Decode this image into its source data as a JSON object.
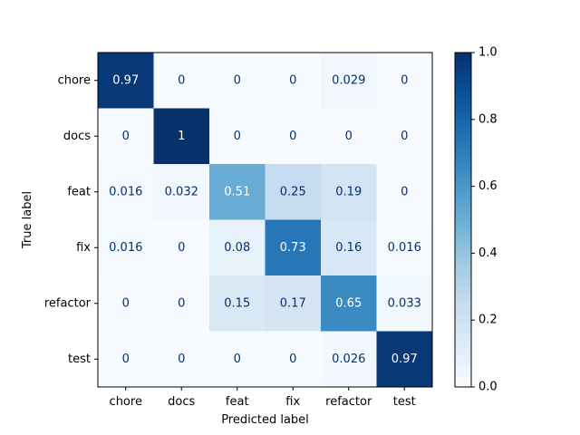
{
  "chart_data": {
    "type": "heatmap",
    "xlabel": "Predicted label",
    "ylabel": "True label",
    "x_categories": [
      "chore",
      "docs",
      "feat",
      "fix",
      "refactor",
      "test"
    ],
    "y_categories": [
      "chore",
      "docs",
      "feat",
      "fix",
      "refactor",
      "test"
    ],
    "values": [
      [
        0.97,
        0,
        0,
        0,
        0.029,
        0
      ],
      [
        0,
        1,
        0,
        0,
        0,
        0
      ],
      [
        0.016,
        0.032,
        0.51,
        0.25,
        0.19,
        0
      ],
      [
        0.016,
        0,
        0.08,
        0.73,
        0.16,
        0.016
      ],
      [
        0,
        0,
        0.15,
        0.17,
        0.65,
        0.033
      ],
      [
        0,
        0,
        0,
        0,
        0.026,
        0.97
      ]
    ],
    "cell_labels": [
      [
        "0.97",
        "0",
        "0",
        "0",
        "0.029",
        "0"
      ],
      [
        "0",
        "1",
        "0",
        "0",
        "0",
        "0"
      ],
      [
        "0.016",
        "0.032",
        "0.51",
        "0.25",
        "0.19",
        "0"
      ],
      [
        "0.016",
        "0",
        "0.08",
        "0.73",
        "0.16",
        "0.016"
      ],
      [
        "0",
        "0",
        "0.15",
        "0.17",
        "0.65",
        "0.033"
      ],
      [
        "0",
        "0",
        "0",
        "0",
        "0.026",
        "0.97"
      ]
    ],
    "colorbar": {
      "range": [
        0,
        1
      ],
      "ticks": [
        0.0,
        0.2,
        0.4,
        0.6,
        0.8,
        1.0
      ],
      "tick_labels": [
        "0.0",
        "0.2",
        "0.4",
        "0.6",
        "0.8",
        "1.0"
      ]
    },
    "colormap": "Blues",
    "grid": false
  }
}
